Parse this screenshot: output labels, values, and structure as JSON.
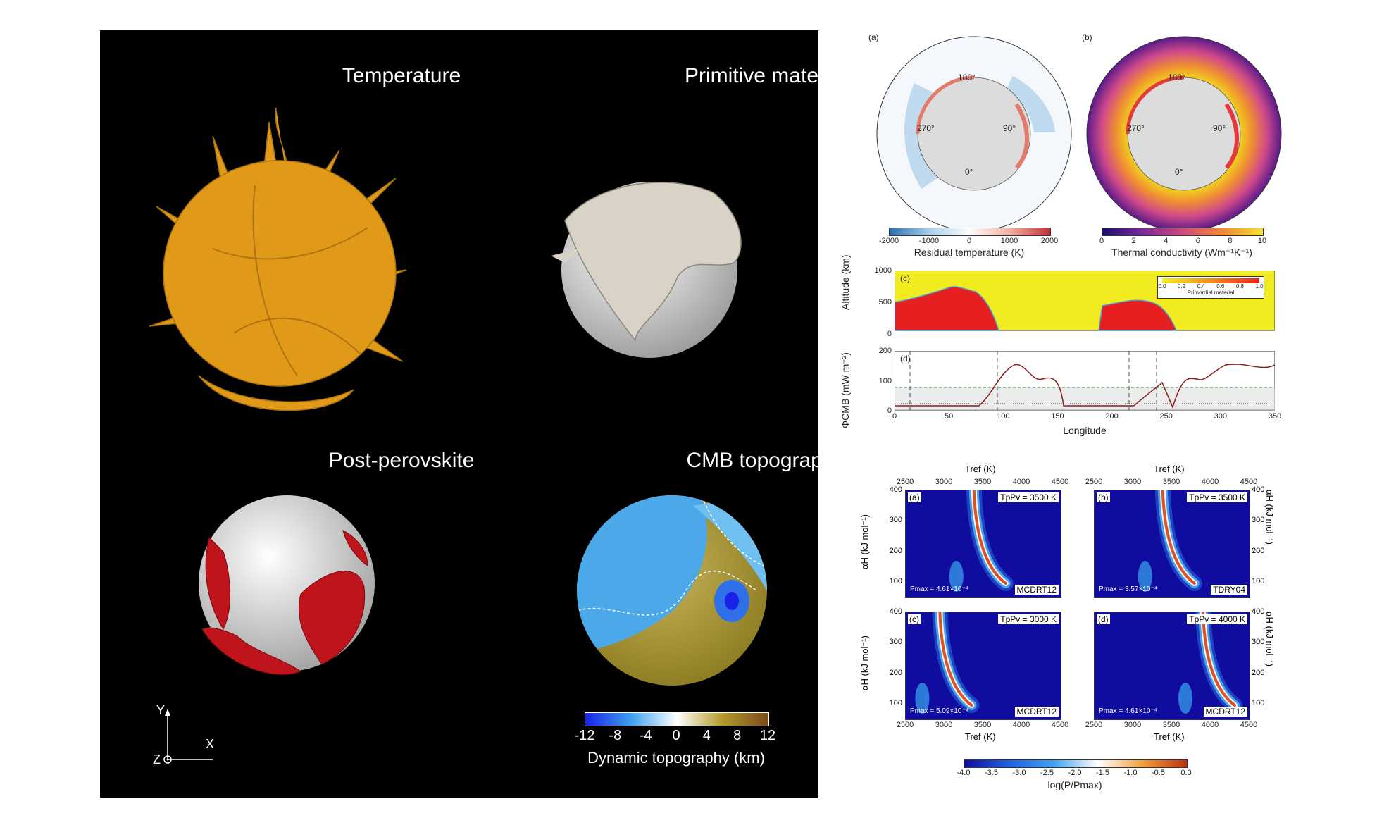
{
  "left": {
    "titles": {
      "temperature": "Temperature",
      "primitive": "Primitive material",
      "postperovskite": "Post-perovskite",
      "cmb": "CMB topography"
    },
    "colorbar": {
      "ticks": [
        "-12",
        "-8",
        "-4",
        "0",
        "4",
        "8",
        "12"
      ],
      "label": "Dynamic topography (km)",
      "colors": [
        "#1a22e8",
        "#3ea0ee",
        "#ffffff",
        "#b39a2a",
        "#7a4a1a"
      ]
    },
    "axes": {
      "y": "Y",
      "x": "X",
      "z": "Z"
    },
    "colors": {
      "temperature": "#e09a18",
      "primitive": "#d8d3c6",
      "ppv": "#c0141c"
    }
  },
  "rings": {
    "a": {
      "letter": "(a)",
      "angles": {
        "top": "180°",
        "left": "270°",
        "right": "90°",
        "bottom": "0°"
      },
      "colorbar_ticks": [
        "-2000",
        "-1000",
        "0",
        "1000",
        "2000"
      ],
      "colorbar_label": "Residual temperature (K)"
    },
    "b": {
      "letter": "(b)",
      "angles": {
        "top": "180°",
        "left": "270°",
        "right": "90°",
        "bottom": "0°"
      },
      "colorbar_ticks": [
        "0",
        "2",
        "4",
        "6",
        "8",
        "10"
      ],
      "colorbar_label": "Thermal conductivity (Wm⁻¹K⁻¹)"
    }
  },
  "profile": {
    "c_letter": "(c)",
    "c_ylabel": "Altitude (km)",
    "c_yticks": [
      "0",
      "500",
      "1000"
    ],
    "legend_ticks": [
      "0.0",
      "0.2",
      "0.4",
      "0.6",
      "0.8",
      "1.0"
    ],
    "legend_label": "Primordial material",
    "d_letter": "(d)",
    "d_ylabel": "ΦCMB (mW m⁻²)",
    "d_yticks": [
      "0",
      "100",
      "200"
    ],
    "xticks": [
      "0",
      "50",
      "100",
      "150",
      "200",
      "250",
      "300",
      "350"
    ],
    "xlabel": "Longitude"
  },
  "heatmaps": {
    "top_axis_label": "Tref (K)",
    "bottom_axis_label": "Tref (K)",
    "ylabel": "αH (kJ mol⁻¹)",
    "xticks": [
      "2500",
      "3000",
      "3500",
      "4000",
      "4500"
    ],
    "yticks": [
      "400",
      "300",
      "200",
      "100"
    ],
    "panels": [
      {
        "letter": "(a)",
        "tppv": "TpPv = 3500 K",
        "pmax": "Pmax = 4.61×10⁻⁴",
        "model": "MCDRT12"
      },
      {
        "letter": "(b)",
        "tppv": "TpPv = 3500 K",
        "pmax": "Pmax = 3.57×10⁻⁴",
        "model": "TDRY04"
      },
      {
        "letter": "(c)",
        "tppv": "TpPv = 3000 K",
        "pmax": "Pmax = 5.09×10⁻⁴",
        "model": "MCDRT12"
      },
      {
        "letter": "(d)",
        "tppv": "TpPv = 4000 K",
        "pmax": "Pmax = 4.61×10⁻⁴",
        "model": "MCDRT12"
      }
    ],
    "colorbar_ticks": [
      "-4.0",
      "-3.5",
      "-3.0",
      "-2.5",
      "-2.0",
      "-1.5",
      "-1.0",
      "-0.5",
      "0.0"
    ],
    "colorbar_label": "log(P/Pmax)"
  }
}
